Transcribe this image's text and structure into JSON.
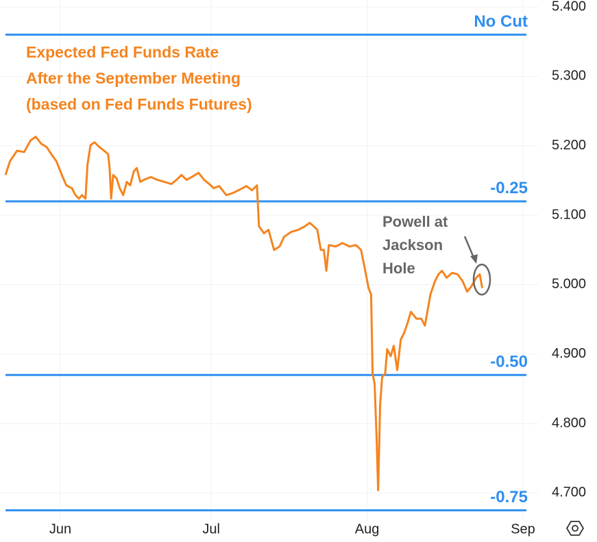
{
  "chart_data": {
    "type": "line",
    "title": [
      "Expected Fed Funds Rate",
      "After the September Meeting",
      "(based on Fed Funds Futures)"
    ],
    "title_color": "#f5841f",
    "annotation": [
      "Powell at",
      "Jackson",
      "Hole"
    ],
    "color": "#f5841f",
    "x": [
      -10.9,
      -10.0,
      -8.6,
      -7.2,
      -5.9,
      -4.9,
      -3.8,
      -2.7,
      -1.8,
      -0.8,
      0.3,
      1.2,
      2.3,
      3.0,
      3.7,
      4.3,
      5.0,
      5.4,
      6.0,
      6.8,
      7.8,
      8.7,
      9.5,
      9.8,
      10.1,
      10.5,
      11.2,
      11.8,
      12.5,
      13.2,
      13.9,
      14.6,
      15.2,
      15.9,
      16.6,
      18.0,
      19.3,
      20.7,
      22.1,
      23.1,
      24.1,
      25.1,
      26.1,
      27.5,
      28.6,
      29.6,
      30.5,
      31.6,
      33.0,
      34.3,
      35.7,
      37.0,
      38.1,
      39.1,
      39.5,
      40.5,
      41.4,
      42.5,
      43.6,
      44.5,
      45.9,
      47.3,
      48.6,
      49.6,
      50.4,
      51.1,
      51.8,
      52.4,
      52.9,
      53.4,
      54.8,
      56.1,
      57.5,
      58.8,
      59.8,
      60.5,
      61.3,
      61.8,
      62.1,
      62.5,
      62.9,
      63.2,
      63.6,
      64.0,
      64.6,
      65.0,
      65.7,
      66.3,
      67.0,
      67.7,
      68.4,
      69.1,
      69.7,
      70.8,
      71.8,
      72.5,
      73.6,
      74.5,
      75.2,
      75.9,
      76.8,
      77.9,
      79.0,
      80.0,
      80.9,
      81.7,
      82.7,
      83.4,
      83.9
    ],
    "values": [
      5.158,
      5.178,
      5.193,
      5.191,
      5.208,
      5.213,
      5.203,
      5.198,
      5.188,
      5.178,
      5.158,
      5.143,
      5.139,
      5.129,
      5.124,
      5.129,
      5.124,
      5.173,
      5.201,
      5.205,
      5.198,
      5.193,
      5.188,
      5.168,
      5.124,
      5.158,
      5.153,
      5.139,
      5.129,
      5.148,
      5.143,
      5.163,
      5.168,
      5.148,
      5.151,
      5.155,
      5.151,
      5.148,
      5.145,
      5.151,
      5.158,
      5.151,
      5.155,
      5.161,
      5.151,
      5.145,
      5.139,
      5.142,
      5.129,
      5.132,
      5.137,
      5.142,
      5.136,
      5.143,
      5.084,
      5.074,
      5.079,
      5.05,
      5.055,
      5.069,
      5.076,
      5.079,
      5.084,
      5.089,
      5.084,
      5.079,
      5.05,
      5.05,
      5.02,
      5.057,
      5.055,
      5.06,
      5.055,
      5.057,
      5.05,
      5.025,
      4.995,
      4.986,
      4.872,
      4.857,
      4.778,
      4.704,
      4.828,
      4.867,
      4.872,
      4.907,
      4.897,
      4.912,
      4.877,
      4.921,
      4.931,
      4.946,
      4.961,
      4.951,
      4.951,
      4.941,
      4.986,
      5.005,
      5.015,
      5.02,
      5.01,
      5.017,
      5.015,
      5.005,
      4.99,
      4.997,
      5.01,
      5.015,
      4.995
    ],
    "xlim": [
      -12,
      95
    ],
    "xticks": [
      {
        "value": 0,
        "label": "Jun"
      },
      {
        "value": 30,
        "label": "Jul"
      },
      {
        "value": 61,
        "label": "Aug"
      },
      {
        "value": 92,
        "label": "Sep"
      }
    ],
    "ylim": [
      4.66,
      5.41
    ],
    "yticks": [
      {
        "value": 4.7,
        "label": "4.700"
      },
      {
        "value": 4.8,
        "label": "4.800"
      },
      {
        "value": 4.9,
        "label": "4.900"
      },
      {
        "value": 5.0,
        "label": "5.000"
      },
      {
        "value": 5.1,
        "label": "5.100"
      },
      {
        "value": 5.2,
        "label": "5.200"
      },
      {
        "value": 5.3,
        "label": "5.300"
      },
      {
        "value": 5.4,
        "label": "5.400"
      }
    ],
    "grid": true,
    "reference_lines": [
      {
        "label": "No Cut",
        "value": 5.36
      },
      {
        "label": "-0.25",
        "value": 5.12
      },
      {
        "label": "-0.50",
        "value": 4.87
      },
      {
        "label": "-0.75",
        "value": 4.675
      }
    ],
    "reference_color": "#2f8ff0"
  }
}
